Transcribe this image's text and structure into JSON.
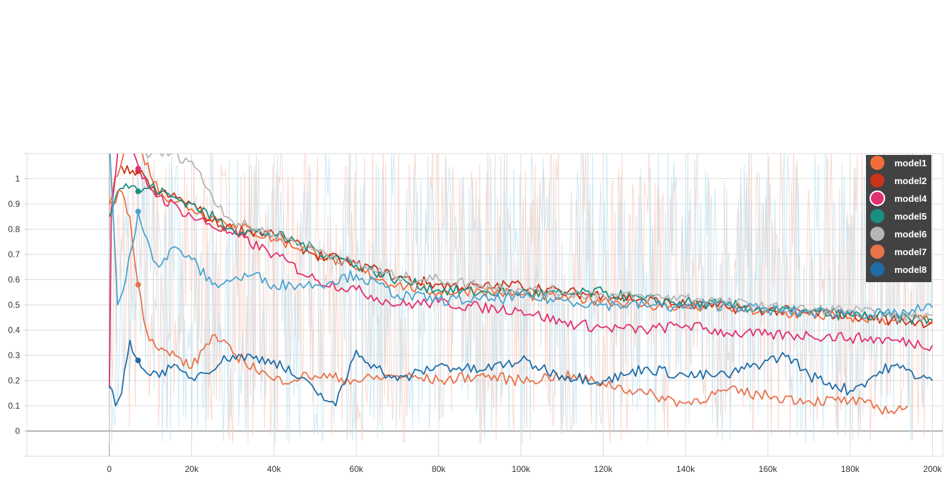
{
  "chart_data": {
    "type": "line",
    "title": "",
    "xlabel": "",
    "ylabel": "",
    "xlim": [
      -20000,
      202500
    ],
    "ylim": [
      -0.1,
      1.1
    ],
    "grid": true,
    "legend_position": "top-right",
    "x_ticks": [
      0,
      20000,
      40000,
      60000,
      80000,
      100000,
      120000,
      140000,
      160000,
      180000,
      200000
    ],
    "x_tick_labels": [
      "0",
      "20k",
      "40k",
      "60k",
      "80k",
      "100k",
      "120k",
      "140k",
      "160k",
      "180k",
      "200k"
    ],
    "y_ticks": [
      0,
      0.1,
      0.2,
      0.3,
      0.4,
      0.5,
      0.6,
      0.7,
      0.8,
      0.9,
      1
    ],
    "y_tick_labels": [
      "0",
      "0.1",
      "0.2",
      "0.3",
      "0.4",
      "0.5",
      "0.6",
      "0.7",
      "0.8",
      "0.9",
      "1"
    ],
    "series": [
      {
        "name": "model1",
        "color": "#f26b3a",
        "x": [
          0,
          4000,
          8000,
          12000,
          20000,
          30000,
          40000,
          50000,
          60000,
          70000,
          80000,
          90000,
          100000,
          110000,
          120000,
          130000,
          140000,
          150000,
          160000,
          170000,
          180000,
          190000,
          200000
        ],
        "y": [
          0.9,
          1.15,
          1.1,
          0.95,
          0.88,
          0.82,
          0.76,
          0.71,
          0.64,
          0.58,
          0.55,
          0.56,
          0.54,
          0.53,
          0.52,
          0.5,
          0.49,
          0.49,
          0.47,
          0.46,
          0.45,
          0.44,
          0.44
        ]
      },
      {
        "name": "model2",
        "color": "#c7341a",
        "x": [
          3000,
          5000,
          7000,
          10000,
          15000,
          20000,
          25000,
          30000,
          40000,
          50000,
          60000,
          70000,
          80000,
          90000,
          100000,
          110000,
          120000,
          130000,
          140000,
          150000,
          160000,
          170000,
          180000,
          190000,
          200000
        ],
        "y": [
          1.05,
          1.02,
          1.03,
          0.96,
          0.93,
          0.9,
          0.83,
          0.8,
          0.78,
          0.7,
          0.66,
          0.61,
          0.58,
          0.57,
          0.58,
          0.55,
          0.54,
          0.52,
          0.5,
          0.49,
          0.48,
          0.47,
          0.46,
          0.44,
          0.43
        ]
      },
      {
        "name": "model4",
        "color": "#e0306f",
        "x": [
          0,
          500,
          2000,
          5000,
          8000,
          12000,
          20000,
          30000,
          40000,
          50000,
          60000,
          70000,
          80000,
          90000,
          100000,
          110000,
          120000,
          130000,
          140000,
          150000,
          160000,
          170000,
          180000,
          190000,
          200000
        ],
        "y": [
          0.17,
          0.88,
          1.1,
          1.12,
          1.0,
          0.93,
          0.85,
          0.78,
          0.7,
          0.6,
          0.56,
          0.5,
          0.51,
          0.49,
          0.48,
          0.43,
          0.41,
          0.4,
          0.42,
          0.39,
          0.38,
          0.38,
          0.37,
          0.36,
          0.34
        ]
      },
      {
        "name": "model5",
        "color": "#1a8f7e",
        "x": [
          0,
          2000,
          4000,
          7000,
          10000,
          15000,
          20000,
          30000,
          40000,
          50000,
          60000,
          70000,
          80000,
          90000,
          100000,
          110000,
          120000,
          130000,
          140000,
          150000,
          160000,
          170000,
          180000,
          190000,
          200000
        ],
        "y": [
          0.85,
          0.95,
          0.98,
          0.95,
          0.97,
          0.93,
          0.9,
          0.8,
          0.78,
          0.72,
          0.66,
          0.6,
          0.56,
          0.55,
          0.55,
          0.54,
          0.55,
          0.52,
          0.51,
          0.5,
          0.48,
          0.47,
          0.46,
          0.45,
          0.44
        ]
      },
      {
        "name": "model6",
        "color": "#b5b5b5",
        "x": [
          8000,
          15000,
          20000,
          25000,
          30000,
          40000,
          50000,
          60000,
          70000,
          80000,
          90000,
          100000,
          110000,
          120000,
          130000,
          140000,
          150000,
          160000,
          170000,
          180000,
          190000,
          200000
        ],
        "y": [
          1.1,
          1.1,
          1.07,
          0.93,
          0.83,
          0.78,
          0.72,
          0.66,
          0.61,
          0.6,
          0.58,
          0.56,
          0.55,
          0.54,
          0.53,
          0.53,
          0.51,
          0.49,
          0.48,
          0.48,
          0.45,
          0.46
        ]
      },
      {
        "name": "model7",
        "color": "#e8734a",
        "x": [
          0,
          3000,
          5000,
          7000,
          9000,
          12000,
          16000,
          20000,
          25000,
          30000,
          40000,
          50000,
          60000,
          70000,
          80000,
          90000,
          100000,
          110000,
          120000,
          130000,
          140000,
          150000,
          160000,
          170000,
          180000,
          190000,
          194000
        ],
        "y": [
          0.9,
          0.95,
          0.85,
          0.58,
          0.4,
          0.32,
          0.3,
          0.25,
          0.38,
          0.31,
          0.2,
          0.22,
          0.2,
          0.22,
          0.2,
          0.22,
          0.2,
          0.22,
          0.19,
          0.15,
          0.11,
          0.16,
          0.14,
          0.12,
          0.12,
          0.08,
          0.1
        ]
      },
      {
        "name": "model8",
        "color": "#1f6ca6",
        "x": [
          0,
          1500,
          3000,
          5000,
          7000,
          10000,
          15000,
          20000,
          30000,
          40000,
          50000,
          55000,
          60000,
          65000,
          70000,
          80000,
          90000,
          100000,
          110000,
          120000,
          125000,
          130000,
          140000,
          150000,
          160000,
          165000,
          170000,
          180000,
          190000,
          200000
        ],
        "y": [
          0.18,
          0.1,
          0.15,
          0.36,
          0.28,
          0.22,
          0.25,
          0.21,
          0.3,
          0.28,
          0.16,
          0.1,
          0.32,
          0.25,
          0.2,
          0.26,
          0.24,
          0.28,
          0.22,
          0.2,
          0.22,
          0.25,
          0.22,
          0.22,
          0.28,
          0.3,
          0.22,
          0.16,
          0.26,
          0.2
        ]
      },
      {
        "name": "",
        "color": "#4aa3cf",
        "x": [
          0,
          2000,
          4000,
          7000,
          10000,
          12000,
          16000,
          20000,
          25000,
          30000,
          35000,
          40000,
          50000,
          60000,
          70000,
          80000,
          90000,
          100000,
          110000,
          120000,
          130000,
          140000,
          150000,
          160000,
          170000,
          180000,
          190000,
          200000
        ],
        "y": [
          1.15,
          0.5,
          0.6,
          0.87,
          0.72,
          0.65,
          0.73,
          0.68,
          0.58,
          0.6,
          0.62,
          0.58,
          0.58,
          0.62,
          0.54,
          0.52,
          0.52,
          0.53,
          0.52,
          0.5,
          0.5,
          0.49,
          0.5,
          0.48,
          0.47,
          0.47,
          0.46,
          0.49
        ]
      }
    ]
  }
}
